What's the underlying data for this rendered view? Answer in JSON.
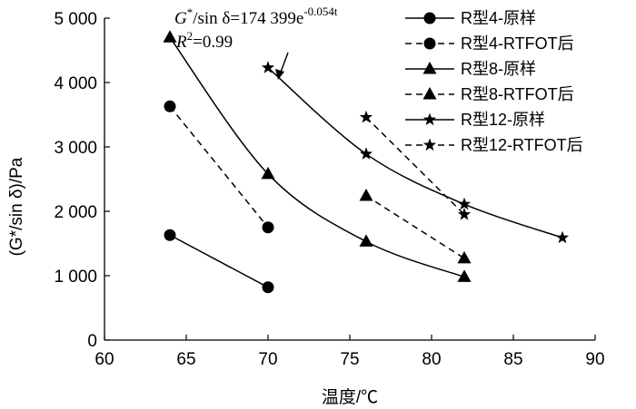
{
  "chart_data": {
    "type": "line",
    "title": "",
    "xlabel": "温度/℃",
    "ylabel": "(G*/sin δ)/Pa",
    "xlim": [
      60,
      90
    ],
    "ylim": [
      0,
      5000
    ],
    "xticks": [
      60,
      65,
      70,
      75,
      80,
      85,
      90
    ],
    "yticks": [
      0,
      1000,
      2000,
      3000,
      4000,
      5000
    ],
    "xtick_labels": [
      "60",
      "65",
      "70",
      "75",
      "80",
      "85",
      "90"
    ],
    "ytick_labels": [
      "0",
      "1 000",
      "2 000",
      "3 000",
      "4 000",
      "5 000"
    ],
    "grid": false,
    "legend_position": "top-right",
    "series": [
      {
        "name": "R型4-原样",
        "marker": "circle",
        "dash": false,
        "x": [
          64,
          70
        ],
        "y": [
          1630,
          820
        ]
      },
      {
        "name": "R型4-RTFOT后",
        "marker": "circle",
        "dash": true,
        "x": [
          64,
          70
        ],
        "y": [
          3630,
          1750
        ]
      },
      {
        "name": "R型8-原样",
        "marker": "triangle",
        "dash": false,
        "x": [
          64,
          70,
          76,
          82
        ],
        "y": [
          4700,
          2580,
          1530,
          980
        ]
      },
      {
        "name": "R型8-RTFOT后",
        "marker": "triangle",
        "dash": true,
        "x": [
          76,
          82
        ],
        "y": [
          2240,
          1270
        ]
      },
      {
        "name": "R型12-原样",
        "marker": "star",
        "dash": false,
        "x": [
          70,
          76,
          82,
          88
        ],
        "y": [
          4230,
          2890,
          2110,
          1590
        ]
      },
      {
        "name": "R型12-RTFOT后",
        "marker": "star",
        "dash": true,
        "x": [
          76,
          82
        ],
        "y": [
          3460,
          1950
        ]
      }
    ],
    "annotations": {
      "fit_formula_lhs": "G",
      "fit_formula_star": "*",
      "fit_formula_mid": "/sin δ=174 399e",
      "fit_formula_exp": "-0.054t",
      "r2_lhs": "R",
      "r2_exp": "2",
      "r2_rhs": "=0.99"
    }
  }
}
